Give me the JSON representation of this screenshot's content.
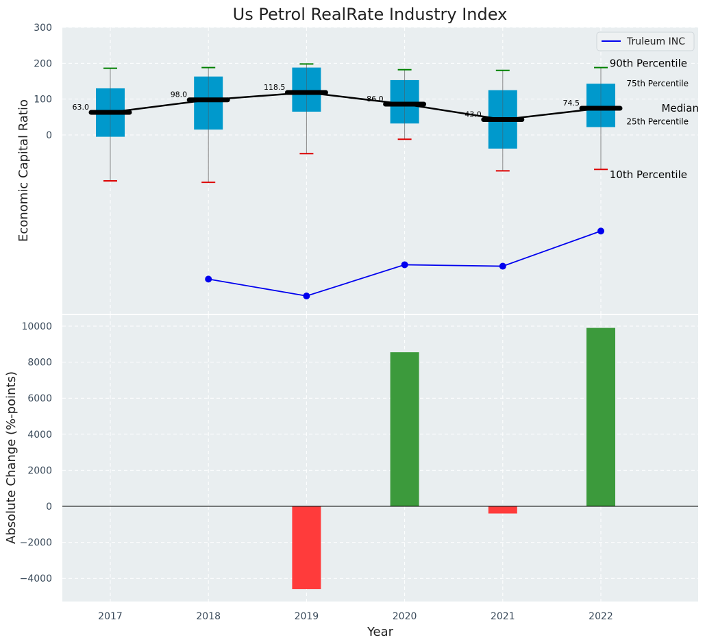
{
  "chart_data": {
    "type": "box+line+bar",
    "title": "Us Petrol RealRate Industry Index",
    "xlabel": "Year",
    "categories": [
      "2017",
      "2018",
      "2019",
      "2020",
      "2021",
      "2022"
    ],
    "top": {
      "ylabel": "Economic Capital Ratio",
      "yticks": [
        "300",
        "200",
        "100",
        "0"
      ],
      "ylim": [
        -500,
        300
      ],
      "percentile_labels": {
        "p90": "90th Percentile",
        "p75": "75th Percentile",
        "median": "Median",
        "p25": "25th Percentile",
        "p10": "10th Percentile"
      },
      "boxes": [
        {
          "year": "2017",
          "p10": -128,
          "p25": -5,
          "median": 63.0,
          "median_label": "63.0",
          "p75": 130,
          "p90": 186
        },
        {
          "year": "2018",
          "p10": -132,
          "p25": 15,
          "median": 98.0,
          "median_label": "98.0",
          "p75": 163,
          "p90": 188
        },
        {
          "year": "2019",
          "p10": -52,
          "p25": 65,
          "median": 118.5,
          "median_label": "118.5",
          "p75": 188,
          "p90": 198
        },
        {
          "year": "2020",
          "p10": -12,
          "p25": 32,
          "median": 86.0,
          "median_label": "86.0",
          "p75": 153,
          "p90": 182
        },
        {
          "year": "2021",
          "p10": -100,
          "p25": -38,
          "median": 43.0,
          "median_label": "43.0",
          "p75": 125,
          "p90": 180
        },
        {
          "year": "2022",
          "p10": -96,
          "p25": 22,
          "median": 74.5,
          "median_label": "74.5",
          "p75": 143,
          "p90": 188
        }
      ],
      "series": [
        {
          "name": "Truleum INC",
          "color": "#0000ee",
          "points": [
            {
              "year": "2018",
              "value": -402
            },
            {
              "year": "2019",
              "value": -449
            },
            {
              "year": "2020",
              "value": -362
            },
            {
              "year": "2021",
              "value": -366
            },
            {
              "year": "2022",
              "value": -268
            }
          ]
        }
      ],
      "legend": "top-right",
      "grid": true
    },
    "bottom": {
      "ylabel": "Absolute Change (%-points)",
      "yticks": [
        "10000",
        "8000",
        "6000",
        "4000",
        "2000",
        "0",
        "−2000",
        "−4000"
      ],
      "ylim": [
        -5300,
        10700
      ],
      "bars": [
        {
          "year": "2019",
          "value": -4600
        },
        {
          "year": "2020",
          "value": 8550
        },
        {
          "year": "2021",
          "value": -400
        },
        {
          "year": "2022",
          "value": 9900
        }
      ],
      "positive_color": "#3c9a3c",
      "negative_color": "#ff3b3b",
      "grid": true
    },
    "colors": {
      "box_fill": "#0099cc",
      "median_line": "#000000",
      "whisker_top": "#008000",
      "whisker_bottom": "#dd0000",
      "panel_bg": "#e9eef0"
    }
  }
}
